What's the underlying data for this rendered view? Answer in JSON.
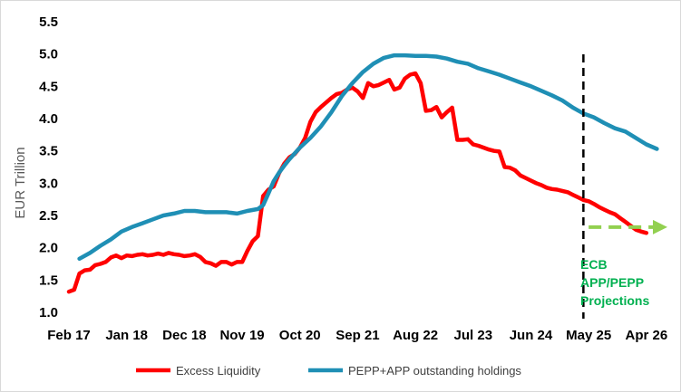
{
  "chart_data": {
    "type": "line",
    "xlabel": "",
    "ylabel": "EUR Trillion",
    "ylim": [
      1.0,
      5.5
    ],
    "yticks": [
      "1.0",
      "1.5",
      "2.0",
      "2.5",
      "3.0",
      "3.5",
      "4.0",
      "4.5",
      "5.0",
      "5.5"
    ],
    "x_range": [
      "2017-02",
      "2026-08"
    ],
    "xtick_labels": [
      {
        "label": "Feb 17",
        "date": "2017-02"
      },
      {
        "label": "Jan 18",
        "date": "2018-01"
      },
      {
        "label": "Dec 18",
        "date": "2018-12"
      },
      {
        "label": "Nov 19",
        "date": "2019-11"
      },
      {
        "label": "Oct 20",
        "date": "2020-10"
      },
      {
        "label": "Sep 21",
        "date": "2021-09"
      },
      {
        "label": "Aug 22",
        "date": "2022-08"
      },
      {
        "label": "Jul 23",
        "date": "2023-07"
      },
      {
        "label": "Jun 24",
        "date": "2024-06"
      },
      {
        "label": "May 25",
        "date": "2025-05"
      },
      {
        "label": "Apr 26",
        "date": "2026-04"
      }
    ],
    "grid": false,
    "legend_position": "bottom",
    "series": [
      {
        "name": "Excess Liquidity",
        "color": "#ff0000",
        "points": [
          [
            "2017-02",
            1.32
          ],
          [
            "2017-03",
            1.35
          ],
          [
            "2017-04",
            1.6
          ],
          [
            "2017-05",
            1.65
          ],
          [
            "2017-06",
            1.66
          ],
          [
            "2017-07",
            1.73
          ],
          [
            "2017-08",
            1.75
          ],
          [
            "2017-09",
            1.78
          ],
          [
            "2017-10",
            1.85
          ],
          [
            "2017-11",
            1.88
          ],
          [
            "2017-12",
            1.84
          ],
          [
            "2018-01",
            1.88
          ],
          [
            "2018-02",
            1.87
          ],
          [
            "2018-03",
            1.89
          ],
          [
            "2018-04",
            1.9
          ],
          [
            "2018-05",
            1.88
          ],
          [
            "2018-06",
            1.89
          ],
          [
            "2018-07",
            1.91
          ],
          [
            "2018-08",
            1.89
          ],
          [
            "2018-09",
            1.92
          ],
          [
            "2018-10",
            1.9
          ],
          [
            "2018-11",
            1.89
          ],
          [
            "2018-12",
            1.87
          ],
          [
            "2019-01",
            1.88
          ],
          [
            "2019-02",
            1.9
          ],
          [
            "2019-03",
            1.86
          ],
          [
            "2019-04",
            1.78
          ],
          [
            "2019-05",
            1.76
          ],
          [
            "2019-06",
            1.72
          ],
          [
            "2019-07",
            1.78
          ],
          [
            "2019-08",
            1.78
          ],
          [
            "2019-09",
            1.74
          ],
          [
            "2019-10",
            1.78
          ],
          [
            "2019-11",
            1.78
          ],
          [
            "2019-12",
            1.95
          ],
          [
            "2020-01",
            2.1
          ],
          [
            "2020-02",
            2.18
          ],
          [
            "2020-03",
            2.8
          ],
          [
            "2020-04",
            2.9
          ],
          [
            "2020-05",
            2.95
          ],
          [
            "2020-06",
            3.15
          ],
          [
            "2020-07",
            3.3
          ],
          [
            "2020-08",
            3.4
          ],
          [
            "2020-09",
            3.45
          ],
          [
            "2020-10",
            3.55
          ],
          [
            "2020-11",
            3.7
          ],
          [
            "2020-12",
            3.95
          ],
          [
            "2021-01",
            4.1
          ],
          [
            "2021-02",
            4.18
          ],
          [
            "2021-03",
            4.25
          ],
          [
            "2021-04",
            4.32
          ],
          [
            "2021-05",
            4.38
          ],
          [
            "2021-06",
            4.4
          ],
          [
            "2021-07",
            4.45
          ],
          [
            "2021-08",
            4.48
          ],
          [
            "2021-09",
            4.42
          ],
          [
            "2021-10",
            4.32
          ],
          [
            "2021-11",
            4.55
          ],
          [
            "2021-12",
            4.5
          ],
          [
            "2022-01",
            4.52
          ],
          [
            "2022-02",
            4.56
          ],
          [
            "2022-03",
            4.6
          ],
          [
            "2022-04",
            4.45
          ],
          [
            "2022-05",
            4.48
          ],
          [
            "2022-06",
            4.62
          ],
          [
            "2022-07",
            4.68
          ],
          [
            "2022-08",
            4.7
          ],
          [
            "2022-09",
            4.55
          ],
          [
            "2022-10",
            4.12
          ],
          [
            "2022-11",
            4.13
          ],
          [
            "2022-12",
            4.18
          ],
          [
            "2023-01",
            4.02
          ],
          [
            "2023-02",
            4.1
          ],
          [
            "2023-03",
            4.17
          ],
          [
            "2023-04",
            3.67
          ],
          [
            "2023-05",
            3.67
          ],
          [
            "2023-06",
            3.68
          ],
          [
            "2023-07",
            3.6
          ],
          [
            "2023-08",
            3.58
          ],
          [
            "2023-09",
            3.55
          ],
          [
            "2023-10",
            3.52
          ],
          [
            "2023-11",
            3.5
          ],
          [
            "2023-12",
            3.49
          ],
          [
            "2024-01",
            3.25
          ],
          [
            "2024-02",
            3.24
          ],
          [
            "2024-03",
            3.2
          ],
          [
            "2024-04",
            3.12
          ],
          [
            "2024-05",
            3.08
          ],
          [
            "2024-06",
            3.04
          ],
          [
            "2024-07",
            3.0
          ],
          [
            "2024-08",
            2.97
          ],
          [
            "2024-09",
            2.93
          ],
          [
            "2024-10",
            2.91
          ],
          [
            "2024-11",
            2.9
          ],
          [
            "2024-12",
            2.88
          ],
          [
            "2025-01",
            2.86
          ],
          [
            "2025-02",
            2.82
          ],
          [
            "2025-03",
            2.78
          ],
          [
            "2025-04",
            2.74
          ],
          [
            "2025-05",
            2.72
          ],
          [
            "2025-06",
            2.68
          ],
          [
            "2025-07",
            2.63
          ],
          [
            "2025-08",
            2.59
          ],
          [
            "2025-09",
            2.55
          ],
          [
            "2025-10",
            2.52
          ],
          [
            "2025-11",
            2.46
          ],
          [
            "2025-12",
            2.4
          ],
          [
            "2026-01",
            2.34
          ],
          [
            "2026-02",
            2.28
          ],
          [
            "2026-03",
            2.25
          ],
          [
            "2026-04",
            2.23
          ]
        ]
      },
      {
        "name": "PEPP+APP outstanding holdings",
        "color": "#1f8fb5",
        "points": [
          [
            "2017-04",
            1.83
          ],
          [
            "2017-06",
            1.92
          ],
          [
            "2017-08",
            2.03
          ],
          [
            "2017-10",
            2.13
          ],
          [
            "2017-12",
            2.25
          ],
          [
            "2018-02",
            2.32
          ],
          [
            "2018-04",
            2.38
          ],
          [
            "2018-06",
            2.44
          ],
          [
            "2018-08",
            2.5
          ],
          [
            "2018-10",
            2.53
          ],
          [
            "2018-12",
            2.57
          ],
          [
            "2019-02",
            2.57
          ],
          [
            "2019-04",
            2.55
          ],
          [
            "2019-06",
            2.55
          ],
          [
            "2019-08",
            2.55
          ],
          [
            "2019-10",
            2.53
          ],
          [
            "2019-12",
            2.57
          ],
          [
            "2020-02",
            2.6
          ],
          [
            "2020-03",
            2.66
          ],
          [
            "2020-04",
            2.84
          ],
          [
            "2020-05",
            3.03
          ],
          [
            "2020-06",
            3.16
          ],
          [
            "2020-07",
            3.27
          ],
          [
            "2020-08",
            3.37
          ],
          [
            "2020-10",
            3.55
          ],
          [
            "2020-12",
            3.7
          ],
          [
            "2021-02",
            3.88
          ],
          [
            "2021-04",
            4.1
          ],
          [
            "2021-06",
            4.35
          ],
          [
            "2021-08",
            4.55
          ],
          [
            "2021-10",
            4.72
          ],
          [
            "2021-12",
            4.85
          ],
          [
            "2022-02",
            4.94
          ],
          [
            "2022-04",
            4.98
          ],
          [
            "2022-06",
            4.98
          ],
          [
            "2022-08",
            4.97
          ],
          [
            "2022-10",
            4.97
          ],
          [
            "2022-12",
            4.96
          ],
          [
            "2023-02",
            4.93
          ],
          [
            "2023-04",
            4.88
          ],
          [
            "2023-06",
            4.85
          ],
          [
            "2023-08",
            4.78
          ],
          [
            "2023-10",
            4.73
          ],
          [
            "2023-12",
            4.68
          ],
          [
            "2024-02",
            4.62
          ],
          [
            "2024-04",
            4.56
          ],
          [
            "2024-06",
            4.5
          ],
          [
            "2024-08",
            4.43
          ],
          [
            "2024-10",
            4.36
          ],
          [
            "2024-12",
            4.28
          ],
          [
            "2025-02",
            4.17
          ],
          [
            "2025-04",
            4.08
          ],
          [
            "2025-06",
            4.02
          ],
          [
            "2025-08",
            3.93
          ],
          [
            "2025-10",
            3.85
          ],
          [
            "2025-12",
            3.8
          ],
          [
            "2026-02",
            3.7
          ],
          [
            "2026-04",
            3.6
          ],
          [
            "2026-06",
            3.53
          ]
        ]
      }
    ],
    "annotations": [
      {
        "type": "vertical-dashed-line",
        "x": "2025-04",
        "color": "#000000"
      },
      {
        "type": "horizontal-dashed-arrow",
        "x_from": "2025-05",
        "x_to": "2026-08",
        "y": 2.32,
        "color": "#92d050"
      },
      {
        "type": "text",
        "lines": [
          "ECB",
          "APP/PEPP",
          "Projections"
        ],
        "color": "#00b050"
      }
    ]
  }
}
